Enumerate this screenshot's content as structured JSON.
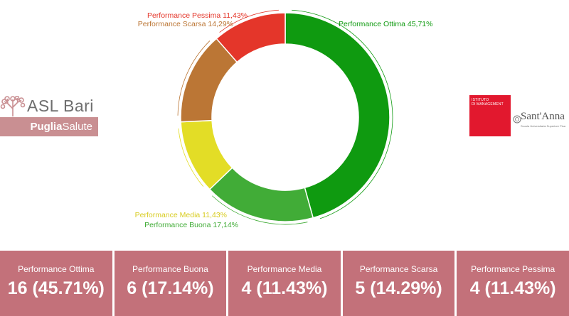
{
  "chart_data": {
    "type": "pie",
    "variant": "donut",
    "categories": [
      "Performance Ottima",
      "Performance Buona",
      "Performance Media",
      "Performance Scarsa",
      "Performance Pessima"
    ],
    "values": [
      45.71,
      17.14,
      11.43,
      14.29,
      11.43
    ],
    "counts": [
      16,
      6,
      4,
      5,
      4
    ],
    "colors": [
      "#0f9a10",
      "#41ac37",
      "#e3dd26",
      "#bb7635",
      "#e4362a"
    ],
    "slice_labels": [
      "Performance Ottima 45,71%",
      "Performance Buona 17,14%",
      "Performance Media 11,43%",
      "Performance Scarsa 14,29%",
      "Performance Pessima 11,43%"
    ]
  },
  "logos": {
    "asl": {
      "name": "ASL Bari",
      "band_bold": "Puglia",
      "band_regular": "Salute"
    },
    "santanna": {
      "box_lines": [
        "ISTITUTO",
        "DI MANAGEMENT"
      ],
      "name": "Sant'Anna",
      "subtitle": "Scuola Universitaria Superiore Pisa"
    }
  },
  "stats": [
    {
      "label": "Performance Ottima",
      "value": "16 (45.71%)"
    },
    {
      "label": "Performance Buona",
      "value": "6 (17.14%)"
    },
    {
      "label": "Performance Media",
      "value": "4 (11.43%)"
    },
    {
      "label": "Performance Scarsa",
      "value": "5 (14.29%)"
    },
    {
      "label": "Performance Pessima",
      "value": "4 (11.43%)"
    }
  ]
}
